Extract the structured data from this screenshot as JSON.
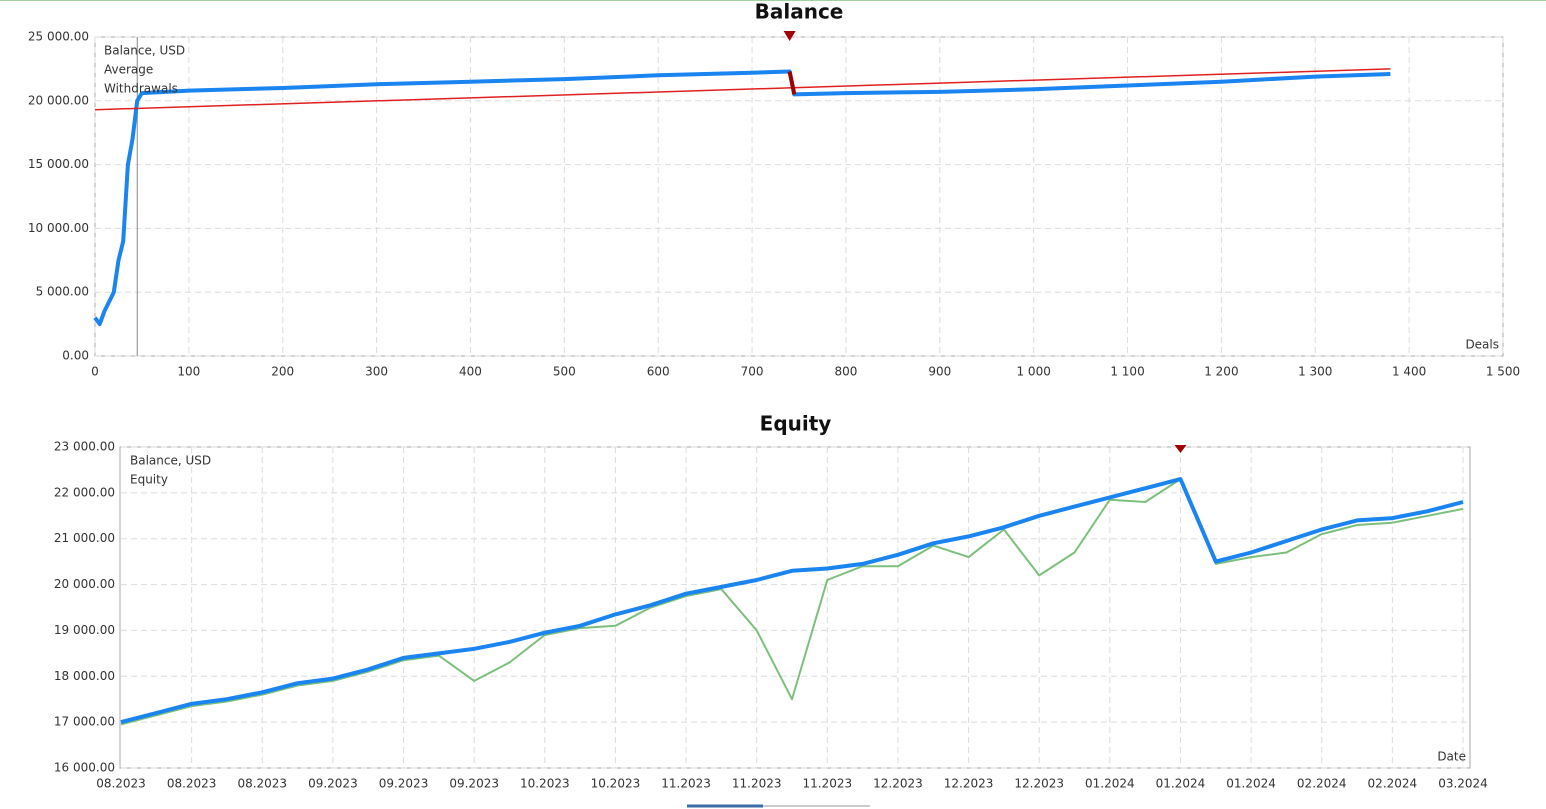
{
  "chart_data": [
    {
      "type": "line",
      "title": "Balance",
      "xlabel": "Deals",
      "grid": true,
      "legend": "top-left",
      "xlim": [
        0,
        1500
      ],
      "xticks": [
        0,
        100,
        200,
        300,
        400,
        500,
        600,
        700,
        800,
        900,
        {
          "value": 1000,
          "label": "1 000"
        },
        {
          "value": 1100,
          "label": "1 100"
        },
        {
          "value": 1200,
          "label": "1 200"
        },
        {
          "value": 1300,
          "label": "1 300"
        },
        {
          "value": 1400,
          "label": "1 400"
        },
        {
          "value": 1500,
          "label": "1 500"
        }
      ],
      "ylim": [
        0,
        25000
      ],
      "yticks": [
        {
          "value": 0,
          "label": "0.00"
        },
        {
          "value": 5000,
          "label": "5 000.00"
        },
        {
          "value": 10000,
          "label": "10 000.00"
        },
        {
          "value": 15000,
          "label": "15 000.00"
        },
        {
          "value": 20000,
          "label": "20 000.00"
        },
        {
          "value": 25000,
          "label": "25 000.00"
        }
      ],
      "series": [
        {
          "name": "Balance, USD",
          "color": "#1a84f0",
          "x": [
            0,
            5,
            10,
            20,
            25,
            30,
            35,
            40,
            45,
            50,
            100,
            200,
            300,
            400,
            500,
            600,
            700,
            740,
            745,
            800,
            900,
            1000,
            1100,
            1200,
            1300,
            1380
          ],
          "values": [
            3000,
            2500,
            3500,
            5000,
            7500,
            9000,
            15000,
            17000,
            20000,
            20600,
            20800,
            21000,
            21300,
            21500,
            21700,
            22000,
            22200,
            22300,
            20500,
            20600,
            20700,
            20900,
            21200,
            21500,
            21900,
            22100
          ]
        },
        {
          "name": "Average",
          "color": "#e02020",
          "x": [
            0,
            1380
          ],
          "values": [
            19300,
            22500
          ]
        },
        {
          "name": "Withdrawals",
          "color": "#a00000",
          "x": [
            740,
            745
          ],
          "values": [
            22300,
            20500
          ]
        }
      ]
    },
    {
      "type": "line",
      "title": "Equity",
      "xlabel": "Date",
      "grid": true,
      "legend": "top-left",
      "categories": [
        "08.2023",
        null,
        "08.2023",
        null,
        "08.2023",
        null,
        "09.2023",
        null,
        "09.2023",
        null,
        "09.2023",
        null,
        "10.2023",
        null,
        "10.2023",
        null,
        "11.2023",
        null,
        "11.2023",
        null,
        "11.2023",
        null,
        "12.2023",
        null,
        "12.2023",
        null,
        "12.2023",
        null,
        "01.2024",
        null,
        "01.2024",
        null,
        "01.2024",
        null,
        "02.2024",
        null,
        "02.2024",
        null,
        "03.2024"
      ],
      "ylim": [
        16000,
        23000
      ],
      "yticks": [
        {
          "value": 16000,
          "label": "16 000.00"
        },
        {
          "value": 17000,
          "label": "17 000.00"
        },
        {
          "value": 18000,
          "label": "18 000.00"
        },
        {
          "value": 19000,
          "label": "19 000.00"
        },
        {
          "value": 20000,
          "label": "20 000.00"
        },
        {
          "value": 21000,
          "label": "21 000.00"
        },
        {
          "value": 22000,
          "label": "22 000.00"
        },
        {
          "value": 23000,
          "label": "23 000.00"
        }
      ],
      "series": [
        {
          "name": "Balance, USD",
          "color": "#1a84f0",
          "values": [
            17000,
            17200,
            17400,
            17500,
            17650,
            17850,
            17950,
            18150,
            18400,
            18500,
            18600,
            18750,
            18950,
            19100,
            19350,
            19550,
            19800,
            19950,
            20100,
            20300,
            20350,
            20450,
            20650,
            20900,
            21050,
            21250,
            21500,
            21700,
            21900,
            22100,
            22300,
            20500,
            20700,
            20950,
            21200,
            21400,
            21450,
            21600,
            21800
          ]
        },
        {
          "name": "Equity",
          "color": "#7cbf7c",
          "values": [
            16950,
            17150,
            17350,
            17450,
            17600,
            17800,
            17900,
            18100,
            18350,
            18450,
            17900,
            18300,
            18900,
            19050,
            19100,
            19500,
            19750,
            19900,
            19000,
            17500,
            20100,
            20400,
            20400,
            20850,
            20600,
            21200,
            20200,
            20700,
            21850,
            21800,
            22300,
            20450,
            20600,
            20700,
            21100,
            21300,
            21350,
            21500,
            21650
          ]
        }
      ]
    }
  ]
}
